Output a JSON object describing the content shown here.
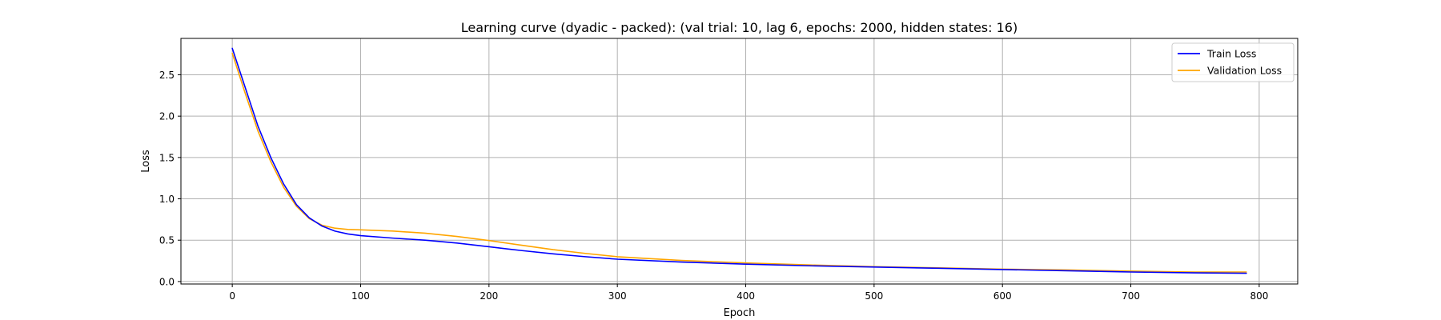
{
  "chart_data": {
    "type": "line",
    "title": "Learning curve (dyadic - packed): (val trial: 10, lag 6, epochs: 2000, hidden states: 16)",
    "xlabel": "Epoch",
    "ylabel": "Loss",
    "xlim": [
      -40,
      830
    ],
    "ylim": [
      -0.03,
      2.94
    ],
    "xticks": [
      0,
      100,
      200,
      300,
      400,
      500,
      600,
      700,
      800
    ],
    "yticks": [
      0.0,
      0.5,
      1.0,
      1.5,
      2.0,
      2.5
    ],
    "xtick_labels": [
      "0",
      "100",
      "200",
      "300",
      "400",
      "500",
      "600",
      "700",
      "800"
    ],
    "ytick_labels": [
      "0.0",
      "0.5",
      "1.0",
      "1.5",
      "2.0",
      "2.5"
    ],
    "grid": true,
    "legend_position": "top-right",
    "series": [
      {
        "name": "Train Loss",
        "color": "#0000ff",
        "x": [
          0,
          10,
          20,
          30,
          40,
          50,
          60,
          70,
          80,
          90,
          100,
          125,
          150,
          175,
          200,
          225,
          250,
          275,
          300,
          350,
          400,
          450,
          500,
          550,
          600,
          650,
          700,
          750,
          790
        ],
        "y": [
          2.82,
          2.35,
          1.88,
          1.5,
          1.18,
          0.93,
          0.77,
          0.67,
          0.61,
          0.575,
          0.555,
          0.525,
          0.5,
          0.465,
          0.42,
          0.375,
          0.335,
          0.3,
          0.27,
          0.235,
          0.21,
          0.19,
          0.175,
          0.16,
          0.145,
          0.13,
          0.115,
          0.105,
          0.1
        ]
      },
      {
        "name": "Validation Loss",
        "color": "#ffa500",
        "x": [
          0,
          10,
          20,
          30,
          40,
          50,
          60,
          70,
          80,
          90,
          100,
          125,
          150,
          175,
          200,
          225,
          250,
          275,
          300,
          350,
          400,
          450,
          500,
          550,
          600,
          650,
          700,
          750,
          790
        ],
        "y": [
          2.76,
          2.28,
          1.82,
          1.45,
          1.14,
          0.91,
          0.76,
          0.68,
          0.645,
          0.63,
          0.625,
          0.61,
          0.585,
          0.545,
          0.495,
          0.44,
          0.385,
          0.34,
          0.3,
          0.255,
          0.225,
          0.2,
          0.18,
          0.165,
          0.15,
          0.14,
          0.125,
          0.115,
          0.115
        ]
      }
    ]
  }
}
